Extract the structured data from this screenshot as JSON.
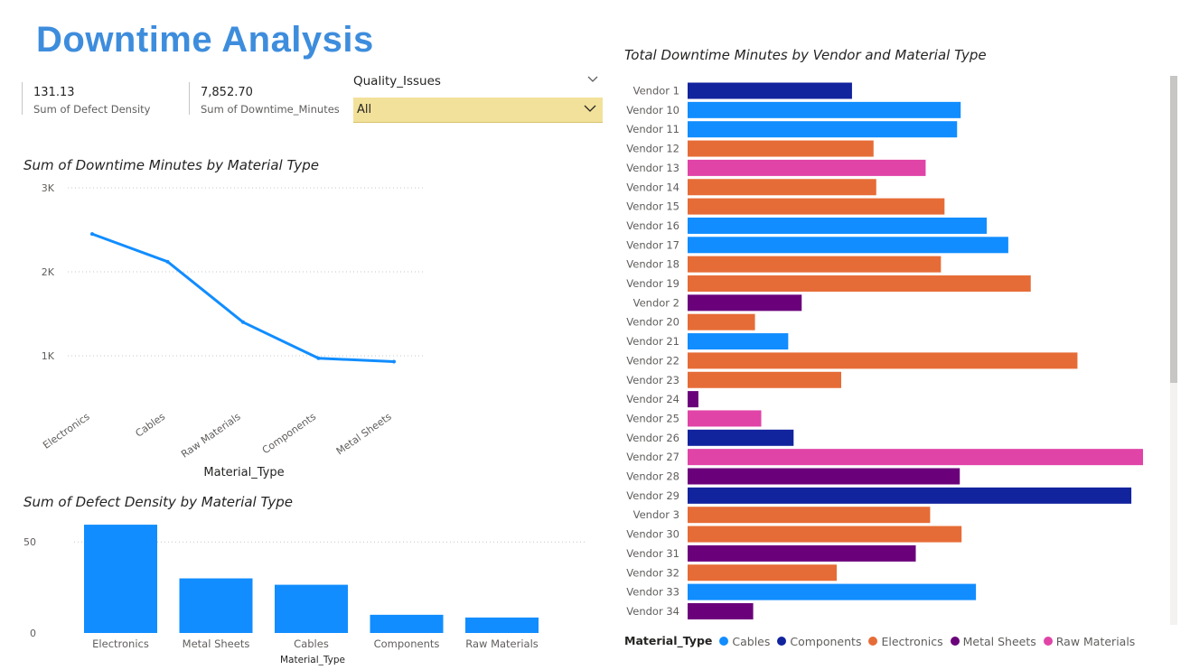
{
  "page": {
    "title": "Downtime Analysis"
  },
  "cards": [
    {
      "value": "131.13",
      "label": "Sum of Defect Density"
    },
    {
      "value": "7,852.70",
      "label": "Sum of Downtime_Minutes"
    }
  ],
  "slicer": {
    "label": "Quality_Issues",
    "value": "All",
    "icons": [
      "chevron-down-icon",
      "chevron-down-icon"
    ]
  },
  "colors": {
    "Cables": "#118dff",
    "Components": "#12239e",
    "Electronics": "#e66c37",
    "Metal Sheets": "#6b007b",
    "Raw Materials": "#e044a7"
  },
  "chart_data": [
    {
      "type": "line",
      "title": "Sum of Downtime Minutes by Material Type",
      "xlabel": "Material_Type",
      "ylabel": "",
      "categories": [
        "Electronics",
        "Cables",
        "Raw Materials",
        "Components",
        "Metal Sheets"
      ],
      "values": [
        2450,
        2120,
        1400,
        970,
        930
      ],
      "ylim": [
        0,
        3000
      ],
      "yticks": [
        {
          "value": 1000,
          "label": "1K"
        },
        {
          "value": 2000,
          "label": "2K"
        },
        {
          "value": 3000,
          "label": "3K"
        }
      ],
      "grid": true,
      "color": "#118dff"
    },
    {
      "type": "bar",
      "title": "Sum of Defect Density by Material Type",
      "xlabel": "Material_Type",
      "ylabel": "",
      "categories": [
        "Electronics",
        "Metal Sheets",
        "Cables",
        "Components",
        "Raw Materials"
      ],
      "values": [
        59.5,
        30,
        26.5,
        10,
        8.5
      ],
      "ylim": [
        0,
        65
      ],
      "yticks": [
        {
          "value": 0,
          "label": "0"
        },
        {
          "value": 50,
          "label": "50"
        }
      ],
      "grid": true,
      "color": "#118dff"
    },
    {
      "type": "bar",
      "orientation": "horizontal",
      "title": "Total Downtime Minutes by Vendor and Material Type",
      "legend_title": "Material_Type",
      "legend": [
        "Cables",
        "Components",
        "Electronics",
        "Metal Sheets",
        "Raw Materials"
      ],
      "legend_position": "bottom-left",
      "categories": [
        "Vendor 1",
        "Vendor 10",
        "Vendor 11",
        "Vendor 12",
        "Vendor 13",
        "Vendor 14",
        "Vendor 15",
        "Vendor 16",
        "Vendor 17",
        "Vendor 18",
        "Vendor 19",
        "Vendor 2",
        "Vendor 20",
        "Vendor 21",
        "Vendor 22",
        "Vendor 23",
        "Vendor 24",
        "Vendor 25",
        "Vendor 26",
        "Vendor 27",
        "Vendor 28",
        "Vendor 29",
        "Vendor 3",
        "Vendor 30",
        "Vendor 31",
        "Vendor 32",
        "Vendor 33",
        "Vendor 34"
      ],
      "materials": [
        "Components",
        "Cables",
        "Cables",
        "Electronics",
        "Raw Materials",
        "Electronics",
        "Electronics",
        "Cables",
        "Cables",
        "Electronics",
        "Electronics",
        "Metal Sheets",
        "Electronics",
        "Cables",
        "Electronics",
        "Electronics",
        "Metal Sheets",
        "Raw Materials",
        "Components",
        "Raw Materials",
        "Metal Sheets",
        "Components",
        "Electronics",
        "Electronics",
        "Metal Sheets",
        "Electronics",
        "Cables",
        "Metal Sheets"
      ],
      "values": [
        183,
        304,
        300,
        207,
        265,
        210,
        286,
        333,
        357,
        282,
        382,
        127,
        75,
        112,
        434,
        171,
        12,
        82,
        118,
        507,
        303,
        494,
        270,
        305,
        254,
        166,
        321,
        73
      ],
      "xlim": [
        0,
        510
      ]
    }
  ]
}
